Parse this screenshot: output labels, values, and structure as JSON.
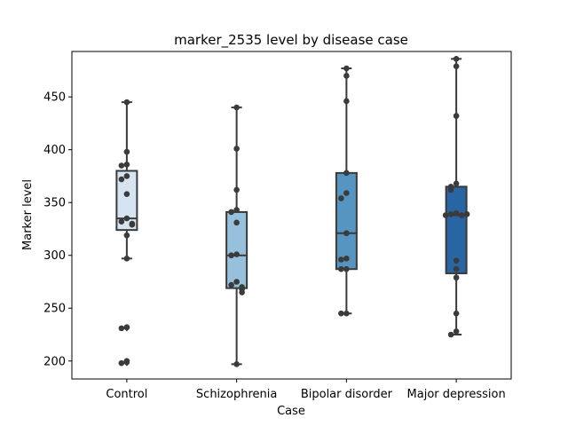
{
  "chart_data": {
    "type": "box",
    "title": "marker_2535 level by disease case",
    "xlabel": "Case",
    "ylabel": "Marker level",
    "ylim": [
      183,
      493
    ],
    "yticks": [
      200,
      250,
      300,
      350,
      400,
      450
    ],
    "grid": false,
    "legend": "none",
    "categories": [
      "Control",
      "Schizophrenia",
      "Bipolar disorder",
      "Major depression"
    ],
    "colors": [
      "#d6e4f1",
      "#96c0dc",
      "#5694c1",
      "#2866a3"
    ],
    "boxes": [
      {
        "q1": 324,
        "median": 335,
        "q3": 380,
        "whisker_low": 297,
        "whisker_high": 445,
        "outliers": [
          232,
          231,
          200,
          198
        ]
      },
      {
        "q1": 269,
        "median": 300,
        "q3": 341,
        "whisker_low": 197,
        "whisker_high": 440,
        "outliers": []
      },
      {
        "q1": 287,
        "median": 321,
        "q3": 378,
        "whisker_low": 245,
        "whisker_high": 477,
        "outliers": []
      },
      {
        "q1": 283,
        "median": 338,
        "q3": 365,
        "whisker_low": 225,
        "whisker_high": 486,
        "outliers": []
      }
    ],
    "points": [
      [
        445,
        398,
        386,
        385,
        375,
        372,
        358,
        335,
        332,
        330,
        329,
        319,
        297,
        232,
        231,
        200,
        198
      ],
      [
        440,
        401,
        362,
        343,
        341,
        331,
        301,
        300,
        275,
        272,
        270,
        268,
        265,
        197
      ],
      [
        477,
        470,
        446,
        378,
        359,
        354,
        321,
        297,
        296,
        287,
        287,
        245,
        245
      ],
      [
        486,
        479,
        432,
        368,
        365,
        362,
        340,
        339,
        338,
        338,
        339,
        295,
        287,
        279,
        245,
        228,
        225
      ]
    ]
  }
}
